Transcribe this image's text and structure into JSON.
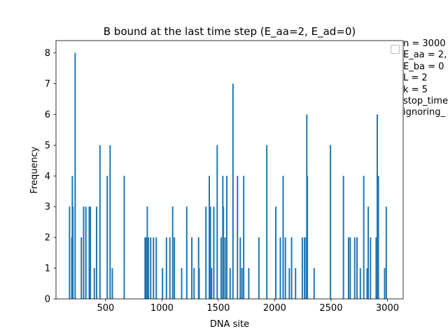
{
  "chart_data": {
    "type": "bar",
    "title": "B bound at the last time step (E_aa=2, E_ad=0)",
    "xlabel": "DNA site",
    "ylabel": "Frequency",
    "xlim": [
      60,
      3140
    ],
    "ylim": [
      0,
      8.4
    ],
    "xticks": [
      500,
      1000,
      1500,
      2000,
      2500,
      3000
    ],
    "yticks": [
      0,
      1,
      2,
      3,
      4,
      5,
      6,
      7,
      8
    ],
    "grid": false,
    "color": "#1f77b4",
    "legend": {
      "placement": "top-right (outside axes)",
      "entries": [
        "n = 3000",
        "E_aa = 2,",
        "E_ba = 0",
        "L = 2",
        "k = 5",
        "stop_time",
        "ignoring_"
      ]
    },
    "bars": [
      {
        "x": 180,
        "y": 3
      },
      {
        "x": 200,
        "y": 2
      },
      {
        "x": 205,
        "y": 4
      },
      {
        "x": 210,
        "y": 3
      },
      {
        "x": 230,
        "y": 8
      },
      {
        "x": 285,
        "y": 2
      },
      {
        "x": 305,
        "y": 3
      },
      {
        "x": 325,
        "y": 3
      },
      {
        "x": 355,
        "y": 3
      },
      {
        "x": 360,
        "y": 1
      },
      {
        "x": 365,
        "y": 3
      },
      {
        "x": 400,
        "y": 1
      },
      {
        "x": 420,
        "y": 3
      },
      {
        "x": 450,
        "y": 5
      },
      {
        "x": 515,
        "y": 4
      },
      {
        "x": 540,
        "y": 5
      },
      {
        "x": 560,
        "y": 1
      },
      {
        "x": 665,
        "y": 4
      },
      {
        "x": 850,
        "y": 2
      },
      {
        "x": 860,
        "y": 2
      },
      {
        "x": 870,
        "y": 3
      },
      {
        "x": 880,
        "y": 2
      },
      {
        "x": 900,
        "y": 2
      },
      {
        "x": 925,
        "y": 2
      },
      {
        "x": 950,
        "y": 2
      },
      {
        "x": 1005,
        "y": 1
      },
      {
        "x": 1040,
        "y": 2
      },
      {
        "x": 1070,
        "y": 2
      },
      {
        "x": 1095,
        "y": 3
      },
      {
        "x": 1110,
        "y": 2
      },
      {
        "x": 1175,
        "y": 1
      },
      {
        "x": 1220,
        "y": 3
      },
      {
        "x": 1265,
        "y": 2
      },
      {
        "x": 1285,
        "y": 1
      },
      {
        "x": 1325,
        "y": 2
      },
      {
        "x": 1330,
        "y": 1
      },
      {
        "x": 1390,
        "y": 3
      },
      {
        "x": 1420,
        "y": 4
      },
      {
        "x": 1430,
        "y": 3
      },
      {
        "x": 1440,
        "y": 1
      },
      {
        "x": 1460,
        "y": 3
      },
      {
        "x": 1490,
        "y": 5
      },
      {
        "x": 1525,
        "y": 2
      },
      {
        "x": 1540,
        "y": 4
      },
      {
        "x": 1545,
        "y": 3
      },
      {
        "x": 1560,
        "y": 2
      },
      {
        "x": 1575,
        "y": 4
      },
      {
        "x": 1605,
        "y": 1
      },
      {
        "x": 1630,
        "y": 7
      },
      {
        "x": 1670,
        "y": 4
      },
      {
        "x": 1695,
        "y": 2
      },
      {
        "x": 1710,
        "y": 1
      },
      {
        "x": 1725,
        "y": 4
      },
      {
        "x": 1770,
        "y": 1
      },
      {
        "x": 1860,
        "y": 2
      },
      {
        "x": 1930,
        "y": 5
      },
      {
        "x": 2010,
        "y": 3
      },
      {
        "x": 2050,
        "y": 2
      },
      {
        "x": 2075,
        "y": 4
      },
      {
        "x": 2095,
        "y": 2
      },
      {
        "x": 2130,
        "y": 1
      },
      {
        "x": 2150,
        "y": 2
      },
      {
        "x": 2185,
        "y": 1
      },
      {
        "x": 2245,
        "y": 2
      },
      {
        "x": 2265,
        "y": 2
      },
      {
        "x": 2280,
        "y": 2
      },
      {
        "x": 2285,
        "y": 6
      },
      {
        "x": 2290,
        "y": 4
      },
      {
        "x": 2350,
        "y": 1
      },
      {
        "x": 2495,
        "y": 5
      },
      {
        "x": 2610,
        "y": 4
      },
      {
        "x": 2655,
        "y": 2
      },
      {
        "x": 2670,
        "y": 2
      },
      {
        "x": 2710,
        "y": 2
      },
      {
        "x": 2730,
        "y": 2
      },
      {
        "x": 2760,
        "y": 1
      },
      {
        "x": 2790,
        "y": 4
      },
      {
        "x": 2820,
        "y": 1
      },
      {
        "x": 2830,
        "y": 3
      },
      {
        "x": 2850,
        "y": 2
      },
      {
        "x": 2900,
        "y": 2
      },
      {
        "x": 2910,
        "y": 6
      },
      {
        "x": 2920,
        "y": 4
      },
      {
        "x": 2975,
        "y": 1
      },
      {
        "x": 2990,
        "y": 3
      }
    ]
  }
}
